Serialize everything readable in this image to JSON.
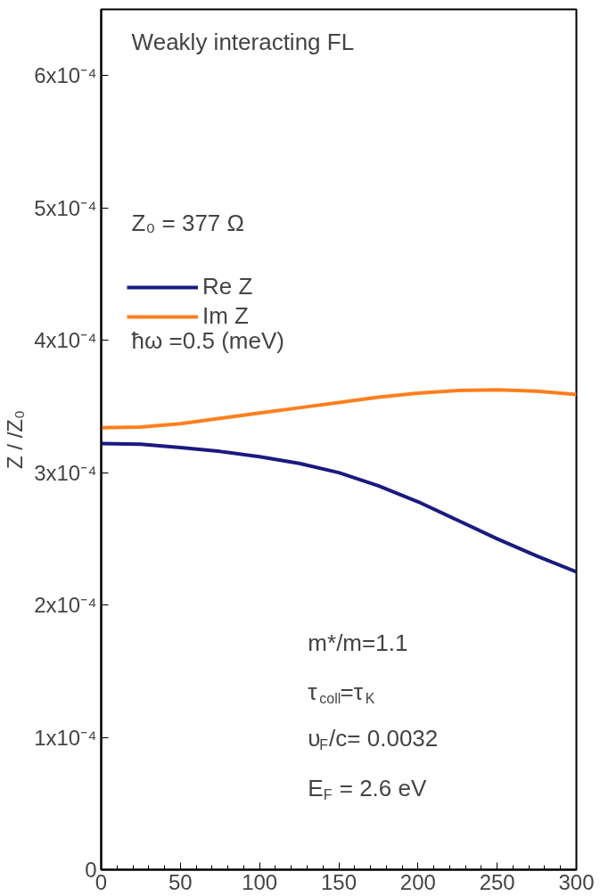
{
  "chart_data": {
    "type": "line",
    "title": "Weakly interacting FL",
    "ylabel": "Z / /Z₀",
    "x": [
      0,
      25,
      50,
      75,
      100,
      125,
      150,
      175,
      200,
      225,
      250,
      275,
      300
    ],
    "series": [
      {
        "name": "Re Z",
        "color": "#1a1a80",
        "values": [
          0.000322,
          0.0003215,
          0.000319,
          0.000316,
          0.000312,
          0.000307,
          0.0003,
          0.00029,
          0.000278,
          0.000264,
          0.00025,
          0.000237,
          0.000225
        ]
      },
      {
        "name": "Im Z",
        "color": "#ff7f1e",
        "values": [
          0.000334,
          0.0003345,
          0.000337,
          0.000341,
          0.000345,
          0.000349,
          0.000353,
          0.000357,
          0.00036,
          0.000362,
          0.0003625,
          0.0003615,
          0.000359
        ]
      }
    ],
    "xlim": [
      0,
      300
    ],
    "xticks": [
      0,
      50,
      100,
      150,
      200,
      250,
      300
    ],
    "ylim": [
      0,
      0.00065
    ],
    "yticks": [
      0,
      {
        "value": 0.0001,
        "label": "1x10⁻⁴"
      },
      {
        "value": 0.0002,
        "label": "2x10⁻⁴"
      },
      {
        "value": 0.0003,
        "label": "3x10⁻⁴"
      },
      {
        "value": 0.0004,
        "label": "4x10⁻⁴"
      },
      {
        "value": 0.0005,
        "label": "5x10⁻⁴"
      },
      {
        "value": 0.0006,
        "label": "6x10⁻⁴"
      }
    ],
    "annotations": [
      "Z₀ = 377 Ω",
      "ħω =0.5 (meV)",
      "m*/m=1.1",
      "τ$_{coll}$=τ$_{K}$",
      "υ$_{F}$/c= 0.0032",
      "E$_{F}$ = 2.6 eV"
    ],
    "legend": "top left",
    "grid": false,
    "marker": "none",
    "line_style": "solid"
  }
}
